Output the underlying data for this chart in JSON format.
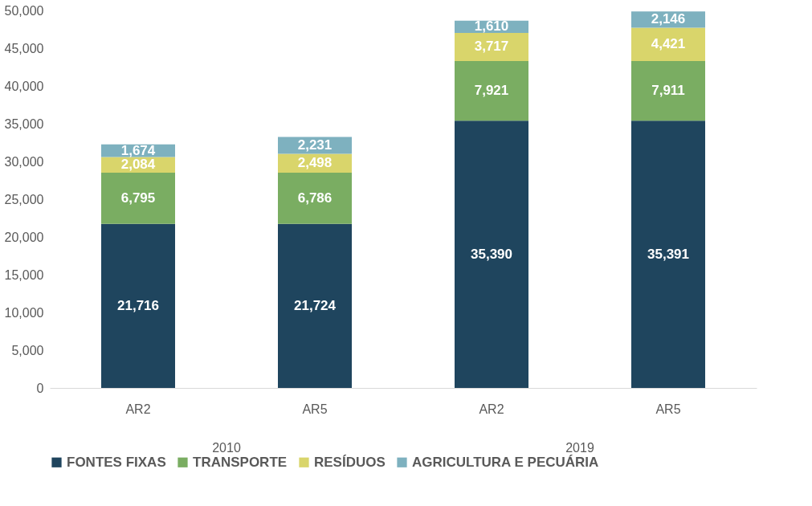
{
  "chart_data": {
    "type": "bar",
    "stacked": true,
    "categories": [
      "AR2",
      "AR5",
      "AR2",
      "AR5"
    ],
    "annotations": [
      "2010",
      "2019"
    ],
    "series": [
      {
        "name": "FONTES FIXAS",
        "color": "#1f455e",
        "values": [
          21716,
          21724,
          35390,
          35391
        ],
        "value_labels": [
          "21,716",
          "21,724",
          "35,390",
          "35,391"
        ]
      },
      {
        "name": "TRANSPORTE",
        "color": "#7aad62",
        "values": [
          6795,
          6786,
          7921,
          7911
        ],
        "value_labels": [
          "6,795",
          "6,786",
          "7,921",
          "7,911"
        ]
      },
      {
        "name": "RESÍDUOS",
        "color": "#d9d56b",
        "values": [
          2084,
          2498,
          3717,
          4421
        ],
        "value_labels": [
          "2,084",
          "2,498",
          "3,717",
          "4,421"
        ]
      },
      {
        "name": "AGRICULTURA E PECUÁRIA",
        "color": "#7eb1bf",
        "values": [
          1674,
          2231,
          1610,
          2146
        ],
        "value_labels": [
          "1,674",
          "2,231",
          "1,610",
          "2,146"
        ]
      }
    ],
    "ylim": [
      0,
      50000
    ],
    "yticks": [
      0,
      {
        "value": 5000,
        "label": "5,000"
      },
      {
        "value": 10000,
        "label": "10,000"
      },
      {
        "value": 15000,
        "label": "15,000"
      },
      {
        "value": 20000,
        "label": "20,000"
      },
      {
        "value": 25000,
        "label": "25,000"
      },
      {
        "value": 30000,
        "label": "30,000"
      },
      {
        "value": 35000,
        "label": "35,000"
      },
      {
        "value": 40000,
        "label": "40,000"
      },
      {
        "value": 45000,
        "label": "45,000"
      },
      {
        "value": 50000,
        "label": "50,000"
      }
    ],
    "grid": false,
    "legend": "bottom"
  }
}
